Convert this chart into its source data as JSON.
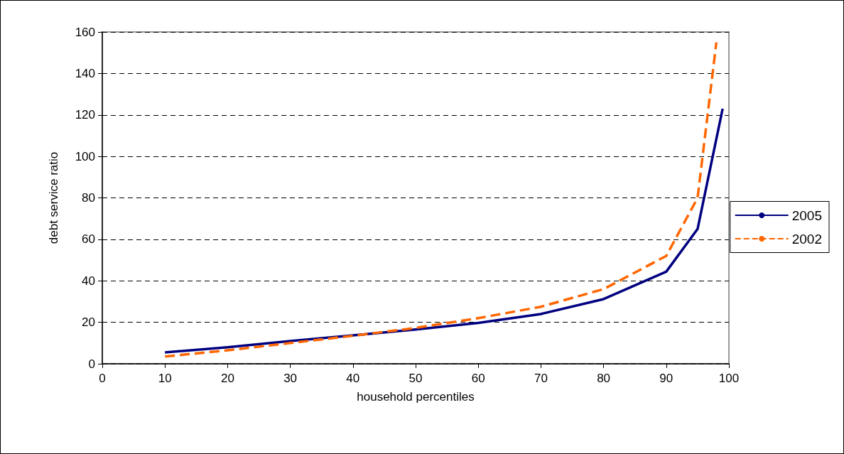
{
  "chart_data": {
    "type": "line",
    "xlabel": "household percentiles",
    "ylabel": "debt service ratio",
    "xlim": [
      0,
      100
    ],
    "xticks": [
      0,
      10,
      20,
      30,
      40,
      50,
      60,
      70,
      80,
      90,
      100
    ],
    "ylim": [
      0,
      160
    ],
    "yticks": [
      0,
      20,
      40,
      60,
      80,
      100,
      120,
      140,
      160
    ],
    "grid": "y",
    "legend": "right",
    "marker": "none",
    "series": [
      {
        "name": "2005",
        "color": "#000080",
        "line_style": "solid",
        "x": [
          10,
          20,
          30,
          40,
          50,
          60,
          70,
          80,
          90,
          95,
          99
        ],
        "values": [
          5.5,
          8,
          11,
          13.7,
          16.5,
          19.7,
          24,
          31.2,
          44.4,
          65,
          123
        ]
      },
      {
        "name": "2002",
        "color": "#ff6600",
        "line_style": "dashed",
        "x": [
          10,
          20,
          30,
          40,
          50,
          60,
          70,
          80,
          90,
          95,
          98
        ],
        "values": [
          3.5,
          6.5,
          10,
          13.5,
          17.3,
          22,
          27.5,
          36,
          52,
          80,
          155
        ]
      }
    ]
  }
}
